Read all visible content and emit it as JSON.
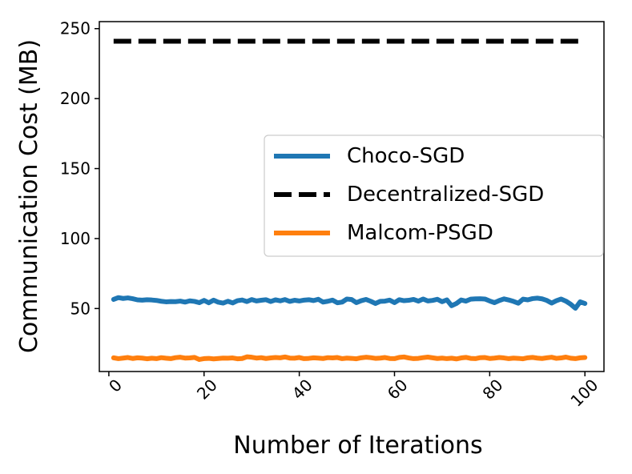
{
  "chart_data": {
    "type": "line",
    "title": "",
    "xlabel": "Number of Iterations",
    "ylabel": "Communication Cost (MB)",
    "xlim": [
      -2,
      104
    ],
    "ylim": [
      5,
      255
    ],
    "xticks": [
      0,
      20,
      40,
      60,
      80,
      100
    ],
    "yticks": [
      50,
      100,
      150,
      200,
      250
    ],
    "xtick_labels": [
      "0",
      "20",
      "40",
      "60",
      "80",
      "100"
    ],
    "ytick_labels": [
      "50",
      "100",
      "150",
      "200",
      "250"
    ],
    "legend_position": "center-right",
    "x": [
      1,
      2,
      3,
      4,
      5,
      6,
      7,
      8,
      9,
      10,
      11,
      12,
      13,
      14,
      15,
      16,
      17,
      18,
      19,
      20,
      21,
      22,
      23,
      24,
      25,
      26,
      27,
      28,
      29,
      30,
      31,
      32,
      33,
      34,
      35,
      36,
      37,
      38,
      39,
      40,
      41,
      42,
      43,
      44,
      45,
      46,
      47,
      48,
      49,
      50,
      51,
      52,
      53,
      54,
      55,
      56,
      57,
      58,
      59,
      60,
      61,
      62,
      63,
      64,
      65,
      66,
      67,
      68,
      69,
      70,
      71,
      72,
      73,
      74,
      75,
      76,
      77,
      78,
      79,
      80,
      81,
      82,
      83,
      84,
      85,
      86,
      87,
      88,
      89,
      90,
      91,
      92,
      93,
      94,
      95,
      96,
      97,
      98,
      99,
      100
    ],
    "series": [
      {
        "name": "Choco-SGD",
        "color": "#1f77b4",
        "style": "solid",
        "values": [
          56.5,
          57.8,
          57.2,
          57.6,
          57.0,
          56.2,
          56.0,
          56.3,
          56.1,
          55.8,
          55.2,
          54.8,
          55.0,
          54.9,
          55.3,
          54.6,
          55.5,
          55.1,
          54.2,
          55.8,
          54.1,
          56.0,
          54.5,
          53.9,
          55.2,
          54.0,
          55.6,
          56.1,
          55.0,
          56.4,
          55.4,
          55.9,
          56.3,
          55.0,
          56.2,
          55.5,
          56.4,
          55.1,
          55.9,
          55.4,
          56.0,
          56.3,
          55.7,
          56.6,
          54.6,
          55.2,
          56.0,
          54.1,
          54.6,
          56.8,
          56.4,
          54.2,
          55.6,
          56.5,
          55.2,
          53.6,
          55.1,
          55.3,
          56.0,
          54.2,
          56.3,
          55.6,
          55.9,
          56.5,
          55.3,
          56.8,
          55.4,
          55.8,
          56.6,
          54.9,
          56.2,
          52.0,
          53.6,
          56.1,
          55.3,
          56.7,
          56.9,
          57.0,
          56.8,
          55.4,
          54.2,
          55.7,
          56.9,
          56.1,
          55.1,
          53.8,
          56.7,
          56.2,
          57.1,
          57.4,
          56.9,
          55.8,
          53.9,
          55.6,
          56.8,
          55.3,
          53.1,
          50.2,
          54.8,
          53.6
        ]
      },
      {
        "name": "Decentralized-SGD",
        "color": "#000000",
        "style": "dashed",
        "values": [
          241,
          241,
          241,
          241,
          241,
          241,
          241,
          241,
          241,
          241,
          241,
          241,
          241,
          241,
          241,
          241,
          241,
          241,
          241,
          241,
          241,
          241,
          241,
          241,
          241,
          241,
          241,
          241,
          241,
          241,
          241,
          241,
          241,
          241,
          241,
          241,
          241,
          241,
          241,
          241,
          241,
          241,
          241,
          241,
          241,
          241,
          241,
          241,
          241,
          241,
          241,
          241,
          241,
          241,
          241,
          241,
          241,
          241,
          241,
          241,
          241,
          241,
          241,
          241,
          241,
          241,
          241,
          241,
          241,
          241,
          241,
          241,
          241,
          241,
          241,
          241,
          241,
          241,
          241,
          241,
          241,
          241,
          241,
          241,
          241,
          241,
          241,
          241,
          241,
          241,
          241,
          241,
          241,
          241,
          241,
          241,
          241,
          241,
          241,
          241
        ]
      },
      {
        "name": "Malcom-PSGD",
        "color": "#ff7f0e",
        "style": "solid",
        "values": [
          14.8,
          14.2,
          14.6,
          15.0,
          14.3,
          14.8,
          14.6,
          14.1,
          14.5,
          14.2,
          14.9,
          14.5,
          14.2,
          14.9,
          15.2,
          14.6,
          14.7,
          15.1,
          13.6,
          14.2,
          14.4,
          14.0,
          14.3,
          14.6,
          14.5,
          14.7,
          14.1,
          14.3,
          15.5,
          15.2,
          14.6,
          14.9,
          14.3,
          14.7,
          15.0,
          14.8,
          15.4,
          14.6,
          14.5,
          15.0,
          14.2,
          14.4,
          14.8,
          14.6,
          14.3,
          14.9,
          14.7,
          15.0,
          14.2,
          14.6,
          14.4,
          14.1,
          14.8,
          15.2,
          14.9,
          14.4,
          14.6,
          15.0,
          14.3,
          14.2,
          15.1,
          15.4,
          14.7,
          14.2,
          14.4,
          14.9,
          15.3,
          14.8,
          14.3,
          14.6,
          14.2,
          14.5,
          14.0,
          14.7,
          15.1,
          14.4,
          14.2,
          14.9,
          15.0,
          14.3,
          14.6,
          15.0,
          14.7,
          14.2,
          14.6,
          14.4,
          14.1,
          14.8,
          15.1,
          14.6,
          14.3,
          14.8,
          15.2,
          14.4,
          14.7,
          15.3,
          14.5,
          14.2,
          14.8,
          15.0
        ]
      }
    ]
  }
}
